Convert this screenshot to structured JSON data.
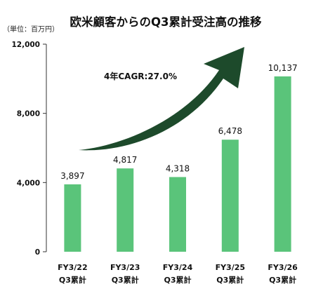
{
  "chart_data": {
    "type": "bar",
    "title": "欧米顧客からのQ3累計受注高の推移",
    "unit_label": "（単位：百万円）",
    "categories_line1": [
      "FY3/22",
      "FY3/23",
      "FY3/24",
      "FY3/25",
      "FY3/26"
    ],
    "categories_line2": [
      "Q3累計",
      "Q3累計",
      "Q3累計",
      "Q3累計",
      "Q3累計"
    ],
    "values": [
      3897,
      4817,
      4318,
      6478,
      10137
    ],
    "value_labels": [
      "3,897",
      "4,817",
      "4,318",
      "6,478",
      "10,137"
    ],
    "ylim": [
      0,
      12000
    ],
    "yticks": [
      0,
      4000,
      8000,
      12000
    ],
    "ytick_labels": [
      "0",
      "4,000",
      "8,000",
      "12,000"
    ],
    "grid": false,
    "annotation": "4年CAGR:27.0%",
    "colors": {
      "bar": "#5ac47a",
      "arrow": "#1d4a2b",
      "axis": "#333333"
    }
  }
}
